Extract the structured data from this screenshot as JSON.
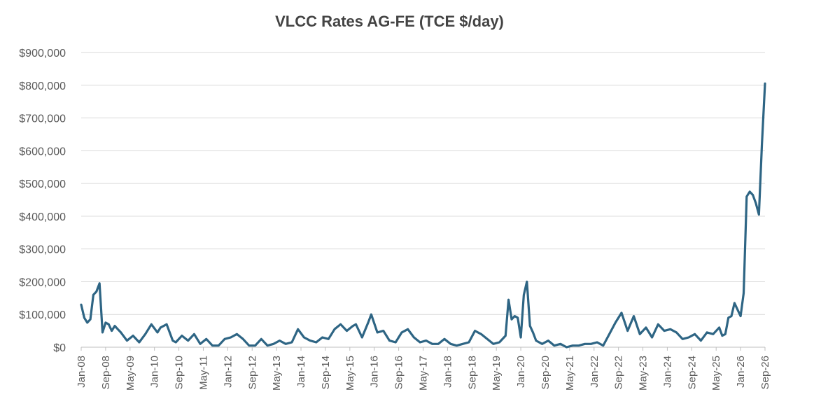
{
  "chart_data": {
    "type": "line",
    "title": "VLCC Rates AG-FE (TCE $/day)",
    "xlabel": "",
    "ylabel": "",
    "ylim": [
      0,
      900000
    ],
    "grid": true,
    "legend": "none",
    "y_tick_labels": [
      "$0",
      "$100,000",
      "$200,000",
      "$300,000",
      "$400,000",
      "$500,000",
      "$600,000",
      "$700,000",
      "$800,000",
      "$900,000"
    ],
    "x_tick_labels": [
      "Jan-08",
      "Sep-08",
      "May-09",
      "Jan-10",
      "Sep-10",
      "May-11",
      "Jan-12",
      "Sep-12",
      "May-13",
      "Jan-14",
      "Sep-14",
      "May-15",
      "Jan-16",
      "Sep-16",
      "May-17",
      "Jan-18",
      "Sep-18",
      "May-19",
      "Jan-20",
      "Sep-20",
      "May-21",
      "Jan-22",
      "Sep-22",
      "May-23",
      "Jan-24",
      "Sep-24",
      "May-25",
      "Jan-26",
      "Sep-26"
    ],
    "line_color": "#2e6584",
    "series": [
      {
        "x": [
          "2008-01",
          "2008-02",
          "2008-03",
          "2008-04",
          "2008-05",
          "2008-06",
          "2008-07",
          "2008-08",
          "2008-09",
          "2008-10",
          "2008-11",
          "2008-12",
          "2009-01",
          "2009-02",
          "2009-04",
          "2009-06",
          "2009-08",
          "2009-10",
          "2009-12",
          "2010-02",
          "2010-03",
          "2010-05",
          "2010-07",
          "2010-08",
          "2010-10",
          "2010-12",
          "2011-02",
          "2011-04",
          "2011-06",
          "2011-08",
          "2011-10",
          "2011-12",
          "2012-02",
          "2012-04",
          "2012-06",
          "2012-08",
          "2012-10",
          "2012-12",
          "2013-02",
          "2013-04",
          "2013-06",
          "2013-08",
          "2013-10",
          "2013-12",
          "2014-02",
          "2014-04",
          "2014-06",
          "2014-08",
          "2014-10",
          "2014-12",
          "2015-02",
          "2015-04",
          "2015-06",
          "2015-07",
          "2015-09",
          "2015-11",
          "2015-12",
          "2016-02",
          "2016-04",
          "2016-06",
          "2016-08",
          "2016-10",
          "2016-12",
          "2017-02",
          "2017-04",
          "2017-06",
          "2017-08",
          "2017-10",
          "2017-12",
          "2018-02",
          "2018-04",
          "2018-06",
          "2018-08",
          "2018-10",
          "2018-12",
          "2019-02",
          "2019-04",
          "2019-06",
          "2019-08",
          "2019-09",
          "2019-10",
          "2019-11",
          "2019-12",
          "2020-01",
          "2020-02",
          "2020-03",
          "2020-04",
          "2020-05",
          "2020-06",
          "2020-08",
          "2020-10",
          "2020-12",
          "2021-02",
          "2021-04",
          "2021-06",
          "2021-08",
          "2021-10",
          "2021-12",
          "2022-02",
          "2022-04",
          "2022-06",
          "2022-08",
          "2022-10",
          "2022-12",
          "2023-02",
          "2023-04",
          "2023-06",
          "2023-08",
          "2023-10",
          "2023-12",
          "2024-02",
          "2024-04",
          "2024-06",
          "2024-08",
          "2024-10",
          "2024-12",
          "2025-02",
          "2025-04",
          "2025-06",
          "2025-07",
          "2025-08",
          "2025-09",
          "2025-10",
          "2025-11",
          "2025-12",
          "2026-01",
          "2026-02",
          "2026-03",
          "2026-04",
          "2026-05",
          "2026-06",
          "2026-07",
          "2026-08",
          "2026-09"
        ],
        "values": [
          130000,
          90000,
          75000,
          85000,
          160000,
          170000,
          195000,
          45000,
          75000,
          70000,
          50000,
          65000,
          55000,
          45000,
          20000,
          35000,
          15000,
          40000,
          70000,
          45000,
          60000,
          70000,
          20000,
          15000,
          35000,
          20000,
          40000,
          10000,
          25000,
          5000,
          5000,
          25000,
          30000,
          40000,
          25000,
          5000,
          5000,
          25000,
          5000,
          10000,
          20000,
          10000,
          15000,
          55000,
          30000,
          20000,
          15000,
          30000,
          25000,
          55000,
          70000,
          50000,
          65000,
          70000,
          30000,
          75000,
          100000,
          45000,
          50000,
          20000,
          15000,
          45000,
          55000,
          30000,
          15000,
          20000,
          10000,
          10000,
          25000,
          10000,
          5000,
          10000,
          15000,
          50000,
          40000,
          25000,
          10000,
          15000,
          35000,
          145000,
          85000,
          95000,
          90000,
          30000,
          160000,
          200000,
          65000,
          45000,
          20000,
          10000,
          20000,
          5000,
          10000,
          0,
          5000,
          5000,
          10000,
          10000,
          15000,
          5000,
          40000,
          75000,
          105000,
          50000,
          95000,
          40000,
          60000,
          30000,
          70000,
          50000,
          55000,
          45000,
          25000,
          30000,
          40000,
          20000,
          45000,
          40000,
          60000,
          35000,
          40000,
          90000,
          95000,
          135000,
          115000,
          95000,
          165000,
          460000,
          475000,
          465000,
          440000,
          405000,
          620000,
          805000
        ]
      }
    ]
  }
}
